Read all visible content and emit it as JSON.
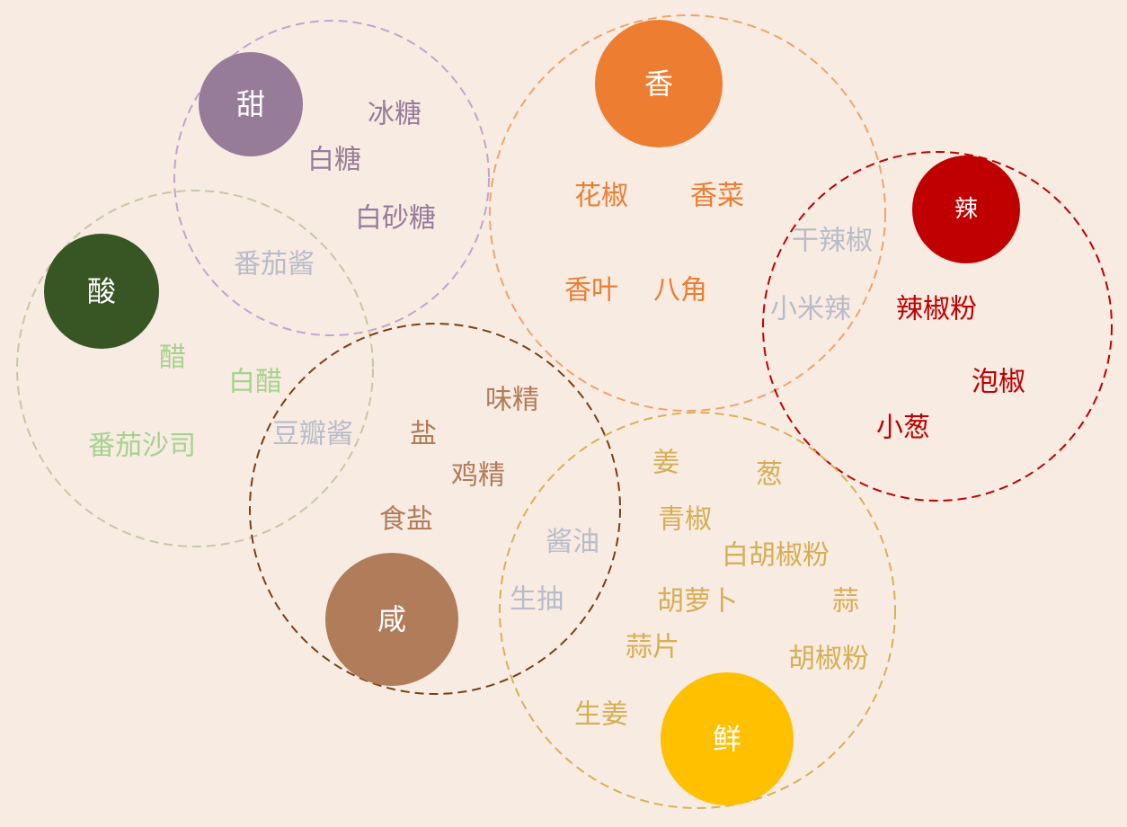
{
  "colors": {
    "background": "#f8ebe2",
    "shared": "#b8bcc8"
  },
  "flavors": [
    {
      "id": "sweet",
      "name": "甜",
      "color": "#967c98",
      "ring_color": "#c4a3cc",
      "items": [
        "冰糖",
        "白糖",
        "白砂糖"
      ]
    },
    {
      "id": "fragrant",
      "name": "香",
      "color": "#ed7d31",
      "ring_color": "#f0a46c",
      "items": [
        "花椒",
        "香菜",
        "香叶",
        "八角"
      ]
    },
    {
      "id": "spicy",
      "name": "辣",
      "color": "#c00000",
      "ring_color": "#c00000",
      "items": [
        "辣椒粉",
        "泡椒",
        "小葱"
      ]
    },
    {
      "id": "sour",
      "name": "酸",
      "color": "#375623",
      "ring_color": "#c5c8a6",
      "text_color": "#a6d18e",
      "items": [
        "醋",
        "白醋",
        "番茄沙司"
      ]
    },
    {
      "id": "salty",
      "name": "咸",
      "color": "#b07c5a",
      "ring_color": "#7b3f14",
      "items": [
        "味精",
        "盐",
        "鸡精",
        "食盐"
      ]
    },
    {
      "id": "umami",
      "name": "鲜",
      "color": "#ffc000",
      "ring_color": "#d8b154",
      "text_color": "#d6ae55",
      "items": [
        "姜",
        "葱",
        "青椒",
        "白胡椒粉",
        "胡萝卜",
        "蒜",
        "蒜片",
        "胡椒粉",
        "生姜"
      ]
    }
  ],
  "shared_items": [
    "番茄酱",
    "干辣椒",
    "小米辣",
    "豆瓣酱",
    "酱油",
    "生抽"
  ]
}
